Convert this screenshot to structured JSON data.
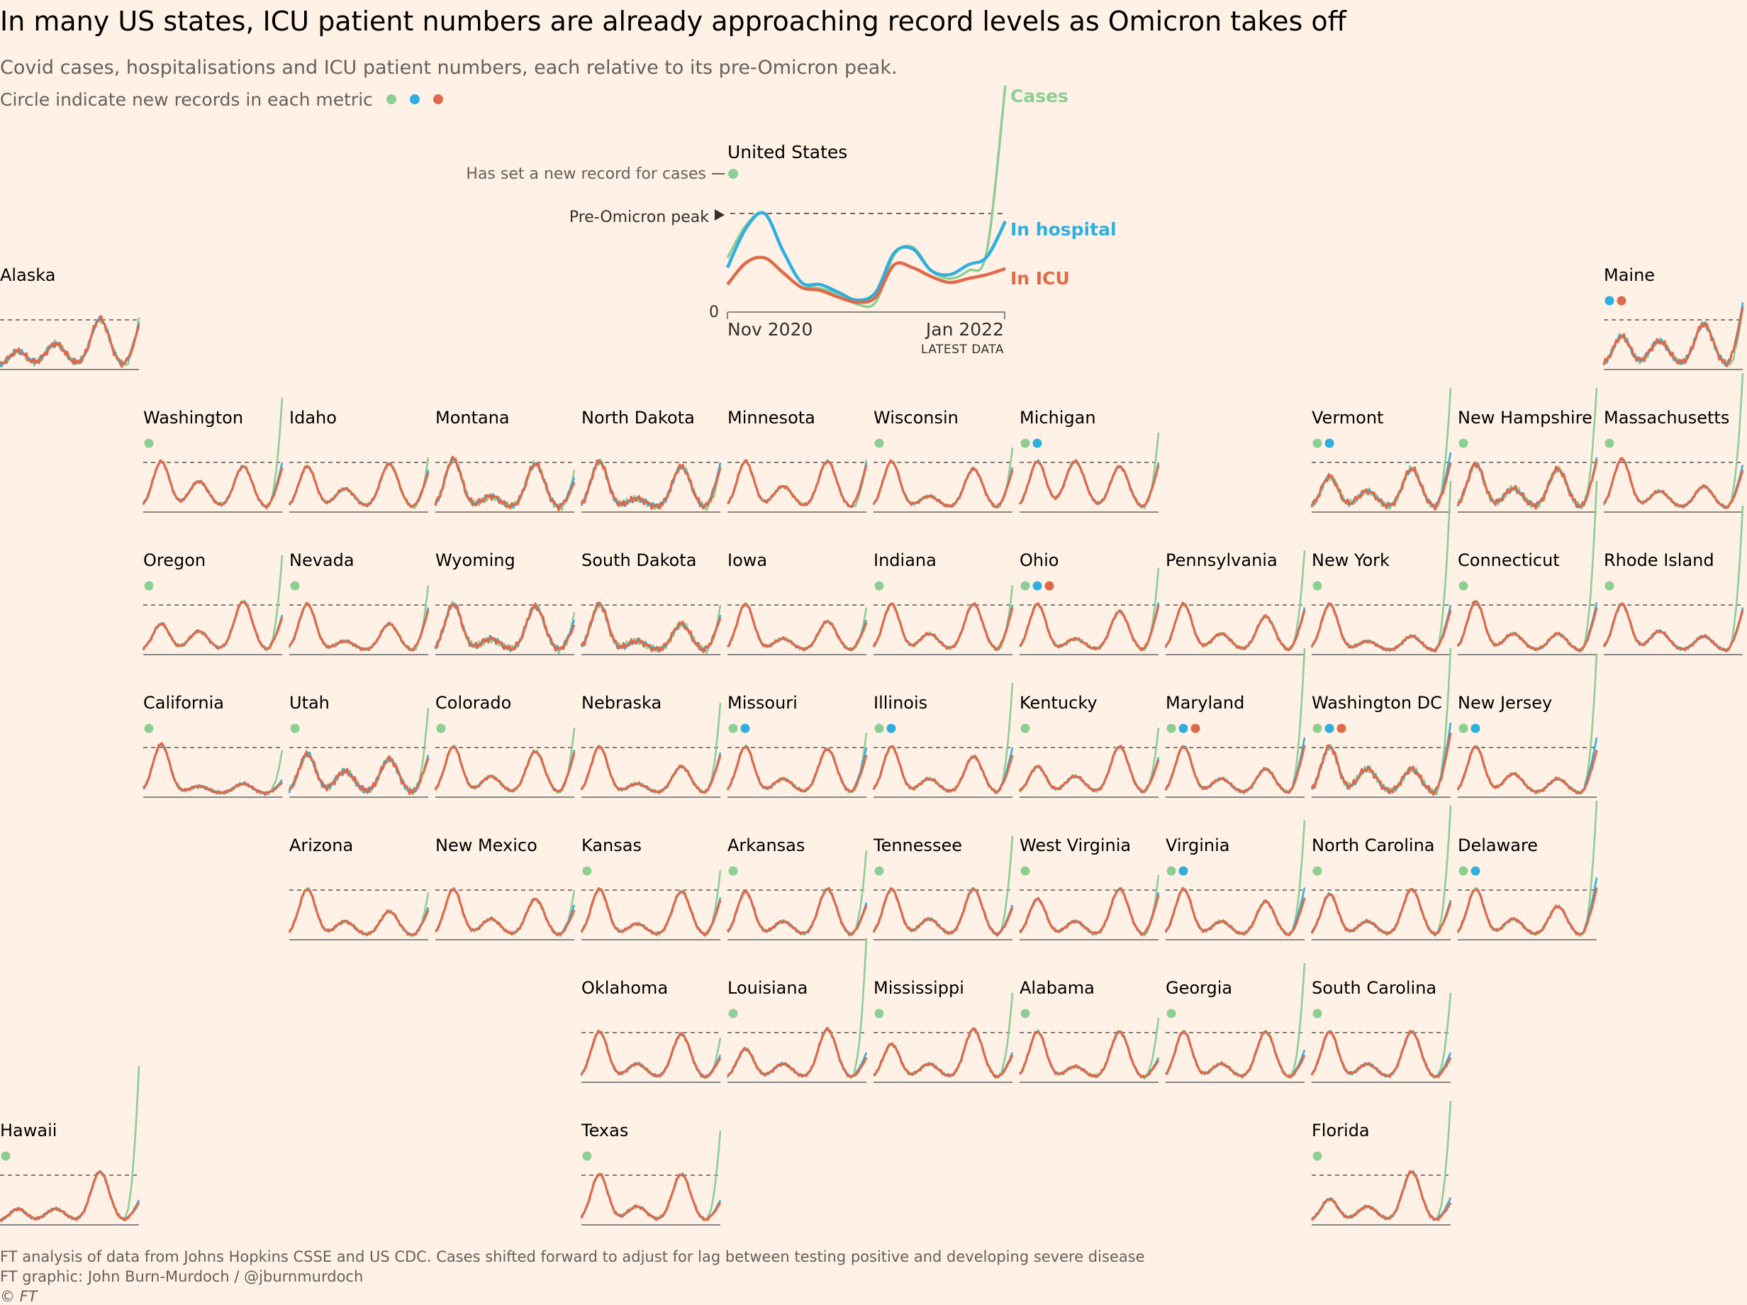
{
  "header": {
    "title": "In many US states, ICU patient numbers are already approaching record levels as Omicron takes off",
    "subtitle": "Covid cases, hospitalisations and ICU patient numbers, each relative to its pre-Omicron peak.",
    "legend_note": "Circle indicate new records in each metric"
  },
  "colors": {
    "background": "#FFF1E5",
    "cases": "#8CCF95",
    "hospital": "#2FAFE0",
    "icu": "#E0694A",
    "peak_line": "#555555",
    "axis": "#888888"
  },
  "chart_data": {
    "type": "line",
    "title": "In many US states, ICU patient numbers are already approaching record levels as Omicron takes off",
    "subtitle": "Covid cases, hospitalisations and ICU patient numbers, each relative to its pre-Omicron peak.",
    "y_reference": "Pre-Omicron peak = 1",
    "x_range": [
      "Nov 2020",
      "Jan 2022"
    ],
    "series_names": [
      "Cases",
      "In hospital",
      "In ICU"
    ],
    "national": {
      "name": "United States",
      "annotations": {
        "record": "Has set a new record for cases",
        "peak": "Pre-Omicron peak",
        "zero": "0",
        "x_start": "Nov 2020",
        "x_end": "Jan 2022",
        "latest": "LATEST DATA"
      },
      "labels": {
        "cases": "Cases",
        "hospital": "In hospital",
        "icu": "In ICU"
      },
      "records": [
        "cases"
      ],
      "series": [
        {
          "name": "Cases",
          "values": [
            0.55,
            0.88,
            1.0,
            0.62,
            0.3,
            0.24,
            0.18,
            0.08,
            0.1,
            0.58,
            0.66,
            0.42,
            0.34,
            0.42,
            0.62,
            2.3
          ]
        },
        {
          "name": "In hospital",
          "values": [
            0.45,
            0.85,
            1.0,
            0.62,
            0.3,
            0.28,
            0.2,
            0.12,
            0.2,
            0.6,
            0.64,
            0.42,
            0.38,
            0.48,
            0.56,
            0.92
          ]
        },
        {
          "name": "In ICU",
          "values": [
            0.28,
            0.5,
            0.55,
            0.4,
            0.25,
            0.22,
            0.15,
            0.1,
            0.15,
            0.48,
            0.45,
            0.36,
            0.3,
            0.34,
            0.38,
            0.44
          ]
        }
      ]
    },
    "states": [
      {
        "name": "Alaska",
        "records": [],
        "peaks": [
          0.3,
          0.45,
          0.95
        ],
        "end": [
          1.05,
          0.95,
          0.9
        ]
      },
      {
        "name": "Maine",
        "records": [
          "hospital",
          "icu"
        ],
        "peaks": [
          0.6,
          0.5,
          0.85
        ],
        "end": [
          1.3,
          1.35,
          1.25
        ]
      },
      {
        "name": "Washington",
        "records": [
          "cases"
        ],
        "peaks": [
          0.95,
          0.55,
          0.85
        ],
        "end": [
          2.3,
          1.0,
          0.9
        ]
      },
      {
        "name": "Idaho",
        "records": [],
        "peaks": [
          0.85,
          0.4,
          0.9
        ],
        "end": [
          1.1,
          0.85,
          0.8
        ]
      },
      {
        "name": "Montana",
        "records": [],
        "peaks": [
          1.0,
          0.25,
          0.9
        ],
        "end": [
          0.85,
          0.7,
          0.6
        ]
      },
      {
        "name": "North Dakota",
        "records": [],
        "peaks": [
          0.95,
          0.2,
          0.85
        ],
        "end": [
          0.95,
          1.0,
          0.9
        ]
      },
      {
        "name": "Minnesota",
        "records": [],
        "peaks": [
          0.95,
          0.45,
          0.95
        ],
        "end": [
          1.05,
          1.0,
          0.95
        ]
      },
      {
        "name": "Wisconsin",
        "records": [
          "cases"
        ],
        "peaks": [
          0.95,
          0.25,
          0.8
        ],
        "end": [
          1.3,
          0.9,
          0.85
        ]
      },
      {
        "name": "Michigan",
        "records": [
          "cases",
          "hospital"
        ],
        "peaks": [
          0.95,
          0.95,
          0.85
        ],
        "end": [
          1.6,
          1.0,
          0.95
        ]
      },
      {
        "name": "Vermont",
        "records": [
          "cases",
          "hospital"
        ],
        "peaks": [
          0.65,
          0.35,
          0.8
        ],
        "end": [
          2.5,
          1.2,
          1.0
        ]
      },
      {
        "name": "New Hampshire",
        "records": [
          "cases"
        ],
        "peaks": [
          0.9,
          0.4,
          0.8
        ],
        "end": [
          2.5,
          1.1,
          1.05
        ]
      },
      {
        "name": "Massachusetts",
        "records": [
          "cases"
        ],
        "peaks": [
          1.0,
          0.35,
          0.45
        ],
        "end": [
          2.8,
          0.95,
          0.85
        ]
      },
      {
        "name": "Oregon",
        "records": [
          "cases"
        ],
        "peaks": [
          0.55,
          0.4,
          1.0
        ],
        "end": [
          2.0,
          0.8,
          0.75
        ]
      },
      {
        "name": "Nevada",
        "records": [
          "cases"
        ],
        "peaks": [
          0.95,
          0.2,
          0.55
        ],
        "end": [
          1.4,
          0.95,
          0.9
        ]
      },
      {
        "name": "Wyoming",
        "records": [],
        "peaks": [
          0.95,
          0.25,
          0.9
        ],
        "end": [
          0.85,
          0.7,
          0.6
        ]
      },
      {
        "name": "South Dakota",
        "records": [],
        "peaks": [
          0.95,
          0.2,
          0.55
        ],
        "end": [
          1.0,
          0.8,
          0.75
        ]
      },
      {
        "name": "Iowa",
        "records": [],
        "peaks": [
          0.95,
          0.25,
          0.6
        ],
        "end": [
          0.95,
          0.7,
          0.65
        ]
      },
      {
        "name": "Indiana",
        "records": [
          "cases"
        ],
        "peaks": [
          0.95,
          0.35,
          0.95
        ],
        "end": [
          1.4,
          1.0,
          0.95
        ]
      },
      {
        "name": "Ohio",
        "records": [
          "cases",
          "hospital",
          "icu"
        ],
        "peaks": [
          0.95,
          0.25,
          0.8
        ],
        "end": [
          1.75,
          1.05,
          1.0
        ]
      },
      {
        "name": "Pennsylvania",
        "records": [],
        "peaks": [
          0.95,
          0.35,
          0.7
        ],
        "end": [
          2.1,
          0.95,
          0.9
        ]
      },
      {
        "name": "New York",
        "records": [
          "cases"
        ],
        "peaks": [
          0.95,
          0.2,
          0.3
        ],
        "end": [
          3.5,
          1.0,
          0.9
        ]
      },
      {
        "name": "Connecticut",
        "records": [
          "cases"
        ],
        "peaks": [
          1.0,
          0.35,
          0.35
        ],
        "end": [
          3.5,
          1.05,
          0.95
        ]
      },
      {
        "name": "Rhode Island",
        "records": [
          "cases"
        ],
        "peaks": [
          0.95,
          0.4,
          0.3
        ],
        "end": [
          3.0,
          0.95,
          0.9
        ]
      },
      {
        "name": "California",
        "records": [
          "cases"
        ],
        "peaks": [
          1.0,
          0.15,
          0.2
        ],
        "end": [
          0.95,
          0.35,
          0.3
        ]
      },
      {
        "name": "Utah",
        "records": [
          "cases"
        ],
        "peaks": [
          0.8,
          0.45,
          0.7
        ],
        "end": [
          1.8,
          0.85,
          0.8
        ]
      },
      {
        "name": "Colorado",
        "records": [
          "cases"
        ],
        "peaks": [
          0.95,
          0.35,
          0.85
        ],
        "end": [
          1.4,
          0.95,
          0.9
        ]
      },
      {
        "name": "Nebraska",
        "records": [],
        "peaks": [
          0.95,
          0.2,
          0.55
        ],
        "end": [
          1.9,
          0.9,
          0.85
        ]
      },
      {
        "name": "Missouri",
        "records": [
          "cases",
          "hospital"
        ],
        "peaks": [
          0.95,
          0.3,
          0.9
        ],
        "end": [
          1.3,
          1.0,
          0.85
        ]
      },
      {
        "name": "Illinois",
        "records": [
          "cases",
          "hospital"
        ],
        "peaks": [
          0.95,
          0.3,
          0.75
        ],
        "end": [
          2.3,
          1.0,
          0.85
        ]
      },
      {
        "name": "Kentucky",
        "records": [
          "cases"
        ],
        "peaks": [
          0.55,
          0.35,
          0.95
        ],
        "end": [
          1.4,
          0.8,
          0.75
        ]
      },
      {
        "name": "Maryland",
        "records": [
          "cases",
          "hospital",
          "icu"
        ],
        "peaks": [
          0.95,
          0.3,
          0.5
        ],
        "end": [
          3.0,
          1.2,
          1.05
        ]
      },
      {
        "name": "Washington DC",
        "records": [
          "cases",
          "hospital",
          "icu"
        ],
        "peaks": [
          0.95,
          0.5,
          0.5
        ],
        "end": [
          3.0,
          1.5,
          1.3
        ]
      },
      {
        "name": "New Jersey",
        "records": [
          "cases",
          "hospital"
        ],
        "peaks": [
          0.95,
          0.4,
          0.3
        ],
        "end": [
          2.9,
          1.2,
          0.95
        ]
      },
      {
        "name": "Arizona",
        "records": [],
        "peaks": [
          0.95,
          0.3,
          0.5
        ],
        "end": [
          0.95,
          0.65,
          0.6
        ]
      },
      {
        "name": "New Mexico",
        "records": [],
        "peaks": [
          0.95,
          0.35,
          0.75
        ],
        "end": [
          1.0,
          0.7,
          0.6
        ]
      },
      {
        "name": "Kansas",
        "records": [
          "cases"
        ],
        "peaks": [
          0.95,
          0.25,
          0.9
        ],
        "end": [
          1.4,
          0.85,
          0.8
        ]
      },
      {
        "name": "Arkansas",
        "records": [
          "cases"
        ],
        "peaks": [
          0.9,
          0.3,
          0.95
        ],
        "end": [
          1.8,
          0.75,
          0.7
        ]
      },
      {
        "name": "Tennessee",
        "records": [
          "cases"
        ],
        "peaks": [
          0.95,
          0.35,
          0.95
        ],
        "end": [
          2.1,
          0.7,
          0.65
        ]
      },
      {
        "name": "West Virginia",
        "records": [
          "cases"
        ],
        "peaks": [
          0.75,
          0.3,
          0.95
        ],
        "end": [
          1.3,
          0.95,
          0.9
        ]
      },
      {
        "name": "Virginia",
        "records": [
          "cases",
          "hospital"
        ],
        "peaks": [
          0.95,
          0.3,
          0.7
        ],
        "end": [
          2.4,
          1.05,
          0.85
        ]
      },
      {
        "name": "North Carolina",
        "records": [
          "cases"
        ],
        "peaks": [
          0.85,
          0.3,
          0.95
        ],
        "end": [
          2.7,
          0.8,
          0.75
        ]
      },
      {
        "name": "Delaware",
        "records": [
          "cases",
          "hospital"
        ],
        "peaks": [
          0.95,
          0.35,
          0.6
        ],
        "end": [
          2.8,
          1.25,
          1.05
        ]
      },
      {
        "name": "Oklahoma",
        "records": [],
        "peaks": [
          0.95,
          0.3,
          0.9
        ],
        "end": [
          0.9,
          0.55,
          0.5
        ]
      },
      {
        "name": "Louisiana",
        "records": [
          "cases"
        ],
        "peaks": [
          0.6,
          0.3,
          1.0
        ],
        "end": [
          2.9,
          0.6,
          0.5
        ]
      },
      {
        "name": "Mississippi",
        "records": [
          "cases"
        ],
        "peaks": [
          0.7,
          0.3,
          1.0
        ],
        "end": [
          1.8,
          0.6,
          0.55
        ]
      },
      {
        "name": "Alabama",
        "records": [
          "cases"
        ],
        "peaks": [
          0.95,
          0.25,
          0.95
        ],
        "end": [
          1.3,
          0.5,
          0.45
        ]
      },
      {
        "name": "Georgia",
        "records": [
          "cases"
        ],
        "peaks": [
          0.95,
          0.3,
          0.95
        ],
        "end": [
          2.4,
          0.65,
          0.55
        ]
      },
      {
        "name": "South Carolina",
        "records": [
          "cases"
        ],
        "peaks": [
          0.95,
          0.3,
          0.95
        ],
        "end": [
          1.8,
          0.6,
          0.5
        ]
      },
      {
        "name": "Hawaii",
        "records": [
          "cases"
        ],
        "peaks": [
          0.25,
          0.25,
          1.0
        ],
        "end": [
          3.2,
          0.5,
          0.45
        ]
      },
      {
        "name": "Texas",
        "records": [
          "cases"
        ],
        "peaks": [
          0.95,
          0.3,
          0.95
        ],
        "end": [
          1.9,
          0.5,
          0.45
        ]
      },
      {
        "name": "Florida",
        "records": [
          "cases"
        ],
        "peaks": [
          0.45,
          0.3,
          1.0
        ],
        "end": [
          2.5,
          0.55,
          0.45
        ]
      }
    ]
  },
  "footer": {
    "source": "FT analysis of data from Johns Hopkins CSSE and US CDC. Cases shifted forward to adjust for lag between testing positive and developing severe disease",
    "credit": "FT graphic: John Burn-Murdoch / @jburnmurdoch",
    "copyright": "© FT"
  }
}
